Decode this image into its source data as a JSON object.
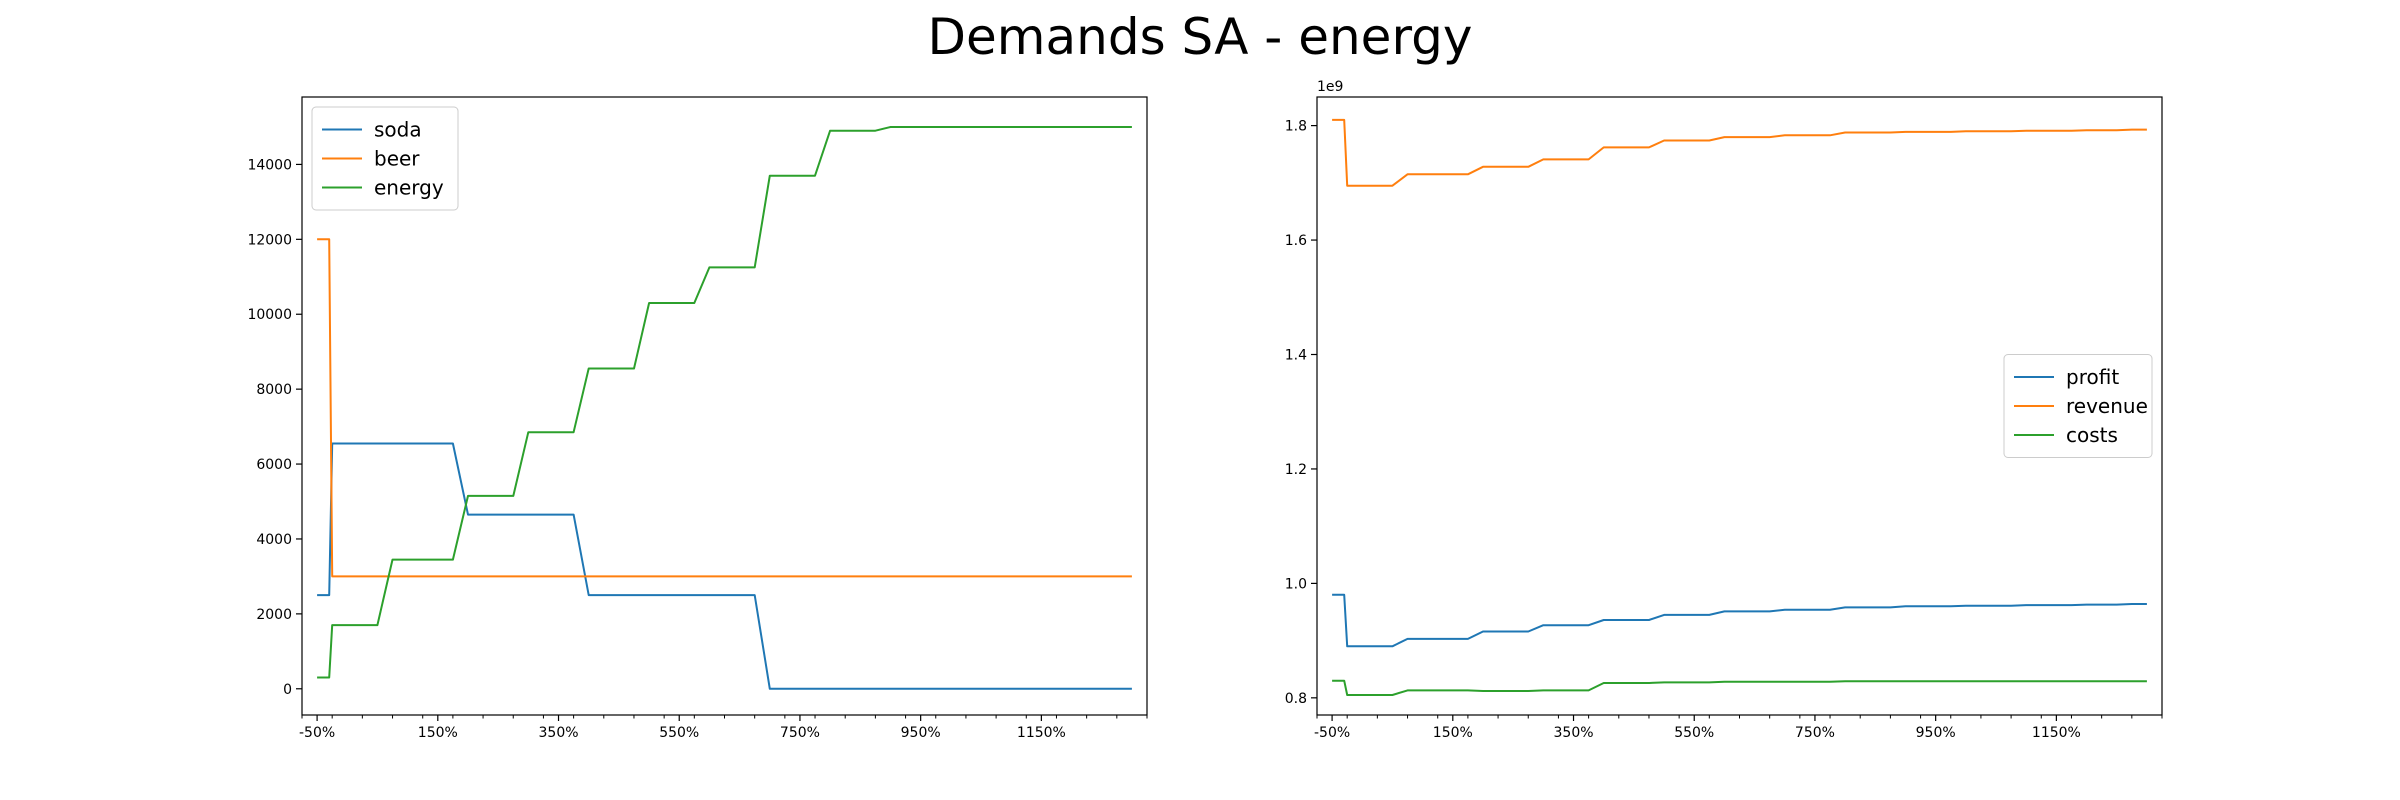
{
  "figure": {
    "suptitle": "Demands SA - energy"
  },
  "chart_data": [
    {
      "type": "line",
      "title": "",
      "xlabel": "",
      "ylabel": "",
      "x": [
        -50,
        -30,
        -25,
        0,
        25,
        50,
        75,
        100,
        125,
        150,
        175,
        200,
        225,
        250,
        275,
        300,
        325,
        350,
        375,
        400,
        425,
        450,
        475,
        500,
        525,
        550,
        575,
        600,
        625,
        650,
        675,
        700,
        725,
        750,
        775,
        800,
        825,
        850,
        875,
        900,
        925,
        950,
        975,
        1000,
        1025,
        1050,
        1075,
        1100,
        1125,
        1150,
        1175,
        1200,
        1225,
        1250,
        1275,
        1300
      ],
      "xlim": [
        -75,
        1325
      ],
      "x_tick_values": [
        -50,
        150,
        350,
        550,
        750,
        950,
        1150
      ],
      "x_tick_labels": [
        "-50%",
        "150%",
        "350%",
        "550%",
        "750%",
        "950%",
        "1150%"
      ],
      "x_minor_ticks": true,
      "ylim": [
        -700,
        15800
      ],
      "y_tick_values": [
        0,
        2000,
        4000,
        6000,
        8000,
        10000,
        12000,
        14000
      ],
      "y_tick_labels": [
        "0",
        "2000",
        "4000",
        "6000",
        "8000",
        "10000",
        "12000",
        "14000"
      ],
      "legend_position": "upper-left",
      "series": [
        {
          "name": "soda",
          "color": "#1f77b4",
          "values": [
            2500,
            2500,
            6550,
            6550,
            6550,
            6550,
            6550,
            6550,
            6550,
            6550,
            6550,
            4650,
            4650,
            4650,
            4650,
            4650,
            4650,
            4650,
            4650,
            2500,
            2500,
            2500,
            2500,
            2500,
            2500,
            2500,
            2500,
            2500,
            2500,
            2500,
            2500,
            0,
            0,
            0,
            0,
            0,
            0,
            0,
            0,
            0,
            0,
            0,
            0,
            0,
            0,
            0,
            0,
            0,
            0,
            0,
            0,
            0,
            0,
            0,
            0,
            0
          ]
        },
        {
          "name": "beer",
          "color": "#ff7f0e",
          "values": [
            12000,
            12000,
            3000,
            3000,
            3000,
            3000,
            3000,
            3000,
            3000,
            3000,
            3000,
            3000,
            3000,
            3000,
            3000,
            3000,
            3000,
            3000,
            3000,
            3000,
            3000,
            3000,
            3000,
            3000,
            3000,
            3000,
            3000,
            3000,
            3000,
            3000,
            3000,
            3000,
            3000,
            3000,
            3000,
            3000,
            3000,
            3000,
            3000,
            3000,
            3000,
            3000,
            3000,
            3000,
            3000,
            3000,
            3000,
            3000,
            3000,
            3000,
            3000,
            3000,
            3000,
            3000,
            3000,
            3000
          ]
        },
        {
          "name": "energy",
          "color": "#2ca02c",
          "values": [
            300,
            300,
            1700,
            1700,
            1700,
            1700,
            3450,
            3450,
            3450,
            3450,
            3450,
            5150,
            5150,
            5150,
            5150,
            6850,
            6850,
            6850,
            6850,
            8550,
            8550,
            8550,
            8550,
            10300,
            10300,
            10300,
            10300,
            11250,
            11250,
            11250,
            11250,
            13700,
            13700,
            13700,
            13700,
            14900,
            14900,
            14900,
            14900,
            15000,
            15000,
            15000,
            15000,
            15000,
            15000,
            15000,
            15000,
            15000,
            15000,
            15000,
            15000,
            15000,
            15000,
            15000,
            15000,
            15000
          ]
        }
      ]
    },
    {
      "type": "line",
      "title": "",
      "xlabel": "",
      "ylabel": "",
      "y_offset_label": "1e9",
      "x": [
        -50,
        -30,
        -25,
        0,
        25,
        50,
        75,
        100,
        125,
        150,
        175,
        200,
        225,
        250,
        275,
        300,
        325,
        350,
        375,
        400,
        425,
        450,
        475,
        500,
        525,
        550,
        575,
        600,
        625,
        650,
        675,
        700,
        725,
        750,
        775,
        800,
        825,
        850,
        875,
        900,
        925,
        950,
        975,
        1000,
        1025,
        1050,
        1075,
        1100,
        1125,
        1150,
        1175,
        1200,
        1225,
        1250,
        1275,
        1300
      ],
      "xlim": [
        -75,
        1325
      ],
      "x_tick_values": [
        -50,
        150,
        350,
        550,
        750,
        950,
        1150
      ],
      "x_tick_labels": [
        "-50%",
        "150%",
        "350%",
        "550%",
        "750%",
        "950%",
        "1150%"
      ],
      "x_minor_ticks": true,
      "ylim": [
        0.77,
        1.85
      ],
      "y_tick_values": [
        0.8,
        1.0,
        1.2,
        1.4,
        1.6,
        1.8
      ],
      "y_tick_labels": [
        "0.8",
        "1.0",
        "1.2",
        "1.4",
        "1.6",
        "1.8"
      ],
      "legend_position": "center-right",
      "series": [
        {
          "name": "profit",
          "color": "#1f77b4",
          "values": [
            0.98,
            0.98,
            0.89,
            0.89,
            0.89,
            0.89,
            0.903,
            0.903,
            0.903,
            0.903,
            0.903,
            0.916,
            0.916,
            0.916,
            0.916,
            0.927,
            0.927,
            0.927,
            0.927,
            0.936,
            0.936,
            0.936,
            0.936,
            0.945,
            0.945,
            0.945,
            0.945,
            0.951,
            0.951,
            0.951,
            0.951,
            0.954,
            0.954,
            0.954,
            0.954,
            0.958,
            0.958,
            0.958,
            0.958,
            0.96,
            0.96,
            0.96,
            0.96,
            0.961,
            0.961,
            0.961,
            0.961,
            0.962,
            0.962,
            0.962,
            0.962,
            0.963,
            0.963,
            0.963,
            0.964,
            0.964
          ]
        },
        {
          "name": "revenue",
          "color": "#ff7f0e",
          "values": [
            1.81,
            1.81,
            1.695,
            1.695,
            1.695,
            1.695,
            1.715,
            1.715,
            1.715,
            1.715,
            1.715,
            1.728,
            1.728,
            1.728,
            1.728,
            1.741,
            1.741,
            1.741,
            1.741,
            1.762,
            1.762,
            1.762,
            1.762,
            1.774,
            1.774,
            1.774,
            1.774,
            1.78,
            1.78,
            1.78,
            1.78,
            1.783,
            1.783,
            1.783,
            1.783,
            1.788,
            1.788,
            1.788,
            1.788,
            1.789,
            1.789,
            1.789,
            1.789,
            1.79,
            1.79,
            1.79,
            1.79,
            1.791,
            1.791,
            1.791,
            1.791,
            1.792,
            1.792,
            1.792,
            1.793,
            1.793
          ]
        },
        {
          "name": "costs",
          "color": "#2ca02c",
          "values": [
            0.83,
            0.83,
            0.805,
            0.805,
            0.805,
            0.805,
            0.813,
            0.813,
            0.813,
            0.813,
            0.813,
            0.812,
            0.812,
            0.812,
            0.812,
            0.813,
            0.813,
            0.813,
            0.813,
            0.826,
            0.826,
            0.826,
            0.826,
            0.827,
            0.827,
            0.827,
            0.827,
            0.828,
            0.828,
            0.828,
            0.828,
            0.828,
            0.828,
            0.828,
            0.828,
            0.829,
            0.829,
            0.829,
            0.829,
            0.829,
            0.829,
            0.829,
            0.829,
            0.829,
            0.829,
            0.829,
            0.829,
            0.829,
            0.829,
            0.829,
            0.829,
            0.829,
            0.829,
            0.829,
            0.829,
            0.829
          ]
        }
      ]
    }
  ]
}
